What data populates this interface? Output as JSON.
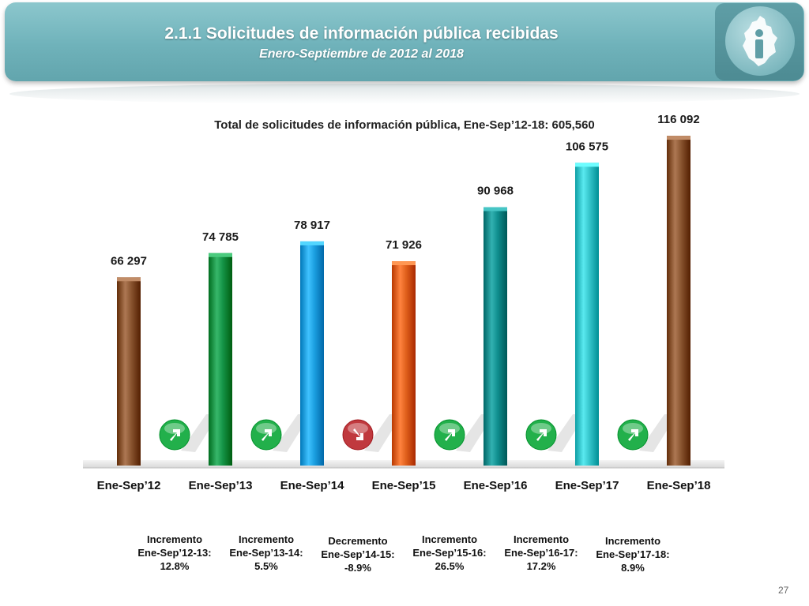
{
  "header": {
    "title": "2.1.1 Solicitudes de información pública recibidas",
    "subtitle": "Enero-Septiembre de 2012 al 2018",
    "logo_icon": "cdmx-map-info-logo-icon"
  },
  "page_number": "27",
  "chart_data": {
    "type": "bar",
    "title": "Total de solicitudes de información pública, Ene-Sep’12-18: 605,560",
    "categories": [
      "Ene-Sep’12",
      "Ene-Sep’13",
      "Ene-Sep’14",
      "Ene-Sep’15",
      "Ene-Sep’16",
      "Ene-Sep’17",
      "Ene-Sep’18"
    ],
    "values": [
      66297,
      74785,
      78917,
      71926,
      90968,
      106575,
      116092
    ],
    "value_labels": [
      "66 297",
      "74 785",
      "78 917",
      "71 926",
      "90 968",
      "106 575",
      "116 092"
    ],
    "colors": [
      "#8a5530",
      "#149447",
      "#1c9fe0",
      "#e0601c",
      "#0f8e8e",
      "#36c6cc",
      "#8a5530"
    ],
    "ylim": [
      0,
      125000
    ],
    "grid": false,
    "xlabel": "",
    "ylabel": "",
    "changes": [
      {
        "direction": "up",
        "icon": "arrow-up-right-icon",
        "color": "#22b04b",
        "lines": [
          "Incremento",
          "Ene-Sep’12-13:",
          "12.8%"
        ]
      },
      {
        "direction": "up",
        "icon": "arrow-up-right-icon",
        "color": "#22b04b",
        "lines": [
          "Incremento",
          "Ene-Sep’13-14:",
          "5.5%"
        ]
      },
      {
        "direction": "down",
        "icon": "arrow-down-right-icon",
        "color": "#c0393e",
        "lines": [
          "Decremento",
          "Ene-Sep’14-15:",
          "-8.9%"
        ]
      },
      {
        "direction": "up",
        "icon": "arrow-up-right-icon",
        "color": "#22b04b",
        "lines": [
          "Incremento",
          "Ene-Sep’15-16:",
          "26.5%"
        ]
      },
      {
        "direction": "up",
        "icon": "arrow-up-right-icon",
        "color": "#22b04b",
        "lines": [
          "Incremento",
          "Ene-Sep’16-17:",
          "17.2%"
        ]
      },
      {
        "direction": "up",
        "icon": "arrow-up-right-icon",
        "color": "#22b04b",
        "lines": [
          "Incremento",
          "Ene-Sep’17-18:",
          "8.9%"
        ]
      }
    ]
  }
}
